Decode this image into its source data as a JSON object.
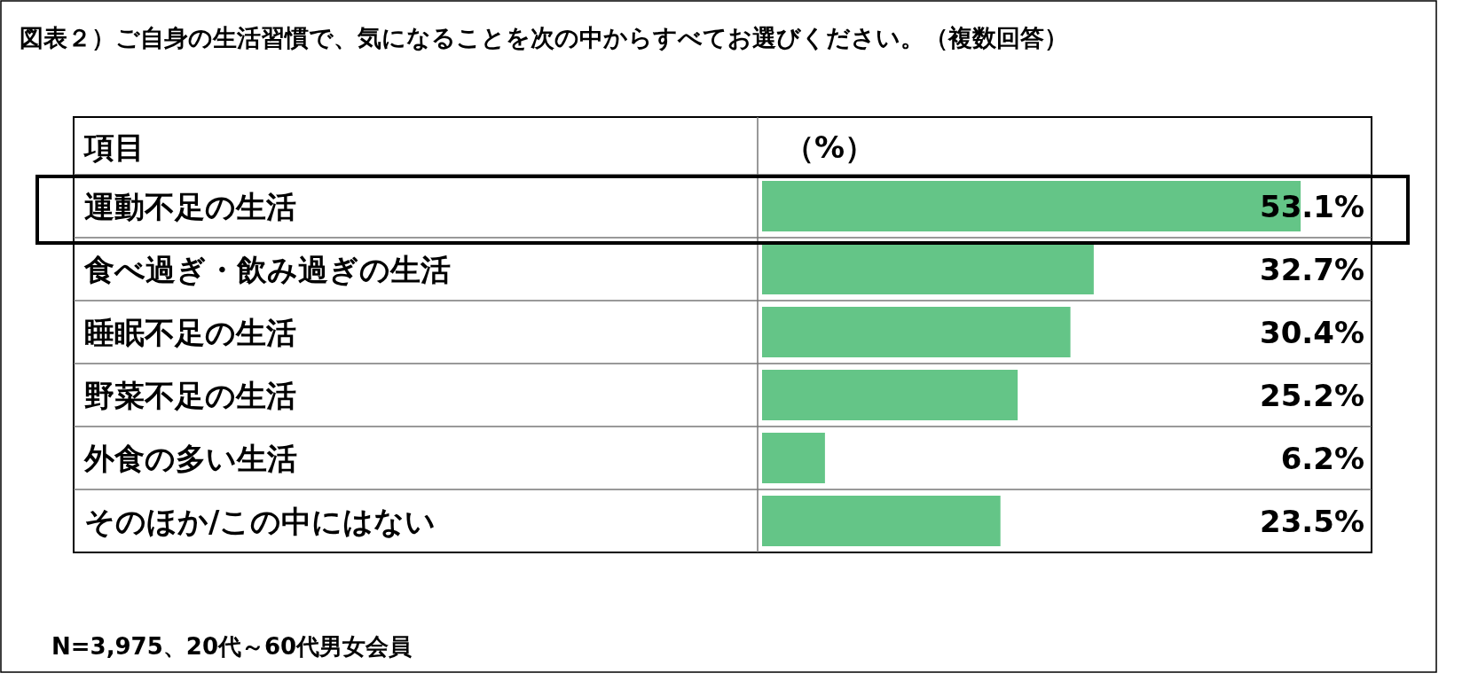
{
  "chart_data": {
    "type": "bar",
    "orientation": "horizontal",
    "title": "図表２）ご自身の生活習慣で、気になることを次の中からすべてお選びください。（複数回答）",
    "ylabel": "項目",
    "xlabel": "（%）",
    "categories": [
      "運動不足の生活",
      "食べ過ぎ・飲み過ぎの生活",
      "睡眠不足の生活",
      "野菜不足の生活",
      "外食の多い生活",
      "そのほか/この中にはない"
    ],
    "values": [
      53.1,
      32.7,
      30.4,
      25.2,
      6.2,
      23.5
    ],
    "value_labels": [
      "53.1%",
      "32.7%",
      "30.4%",
      "25.2%",
      "6.2%",
      "23.5%"
    ],
    "color": "#64c587",
    "relative": false,
    "annotations": [
      "N=3,975、20代～60代男女会員"
    ]
  }
}
